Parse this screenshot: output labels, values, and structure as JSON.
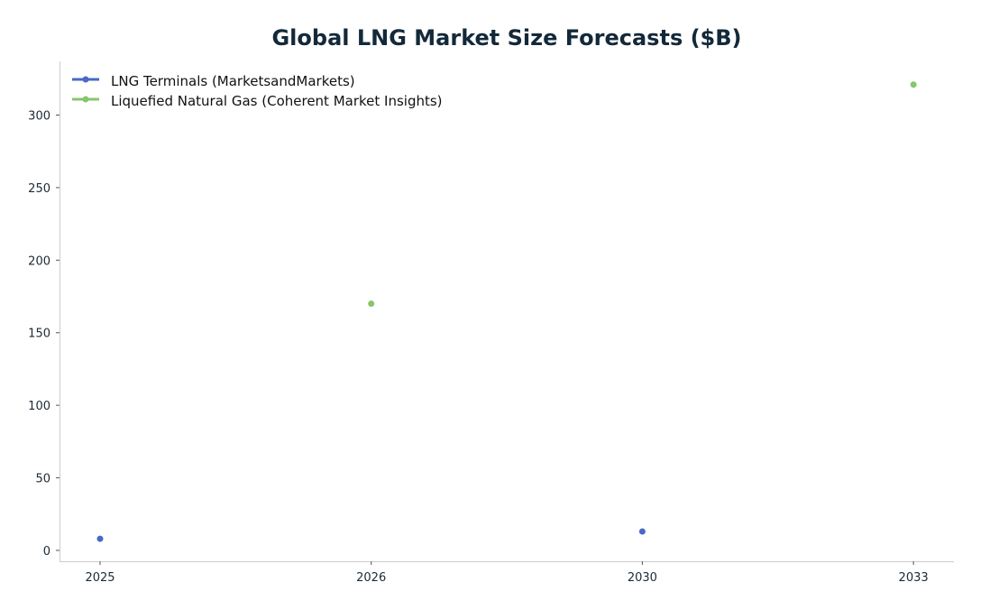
{
  "chart_data": {
    "type": "scatter",
    "title": "Global LNG Market Size Forecasts ($B)",
    "xlabel": "",
    "ylabel": "",
    "categories": [
      "2025",
      "2026",
      "2030",
      "2033"
    ],
    "ylim": [
      -7.5,
      337
    ],
    "yticks": [
      0,
      50,
      100,
      150,
      200,
      250,
      300
    ],
    "grid": false,
    "legend_position": "top-left",
    "series": [
      {
        "name": "LNG Terminals (MarketsandMarkets)",
        "color": "#4a68c5",
        "points": [
          {
            "x": "2025",
            "y": 8
          },
          {
            "x": "2030",
            "y": 13
          }
        ]
      },
      {
        "name": "Liquefied Natural Gas (Coherent Market Insights)",
        "color": "#86c66c",
        "points": [
          {
            "x": "2026",
            "y": 170
          },
          {
            "x": "2033",
            "y": 321
          }
        ]
      }
    ]
  }
}
